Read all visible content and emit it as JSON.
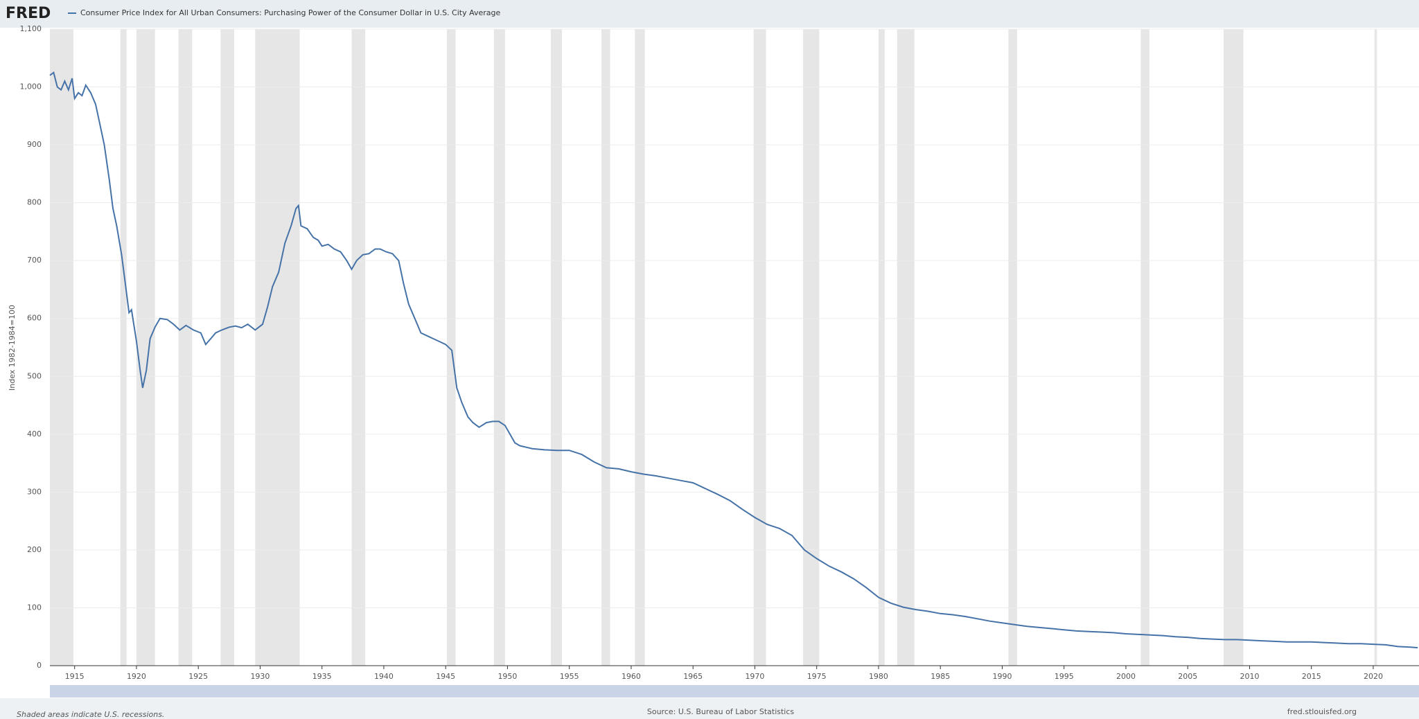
{
  "logo": "FRED",
  "chart_data": {
    "type": "line",
    "title": "Consumer Price Index for All Urban Consumers: Purchasing Power of the Consumer Dollar in U.S. City Average",
    "y_label": "Index 1982-1984=100",
    "note": "Shaded areas indicate U.S. recessions.",
    "source": "Source: U.S. Bureau of Labor Statistics",
    "site": "fred.stlouisfed.org",
    "xlim": [
      1913,
      2023.7
    ],
    "xticks": [
      1915,
      1920,
      1925,
      1930,
      1935,
      1940,
      1945,
      1950,
      1955,
      1960,
      1965,
      1970,
      1975,
      1980,
      1985,
      1990,
      1995,
      2000,
      2005,
      2010,
      2015,
      2020
    ],
    "ylim": [
      0,
      1100
    ],
    "yticks": [
      0,
      100,
      200,
      300,
      400,
      500,
      600,
      700,
      800,
      900,
      {
        "value": 1000,
        "label": "1,000"
      },
      {
        "value": 1100,
        "label": "1,100"
      }
    ],
    "grid": true,
    "recession_color": "#e6e6e6",
    "recessions": [
      [
        1913.0,
        1914.9
      ],
      [
        1918.7,
        1919.2
      ],
      [
        1920.0,
        1921.5
      ],
      [
        1923.4,
        1924.5
      ],
      [
        1926.8,
        1927.9
      ],
      [
        1929.6,
        1933.2
      ],
      [
        1937.4,
        1938.5
      ],
      [
        1945.1,
        1945.8
      ],
      [
        1948.9,
        1949.8
      ],
      [
        1953.5,
        1954.4
      ],
      [
        1957.6,
        1958.3
      ],
      [
        1960.3,
        1961.1
      ],
      [
        1969.9,
        1970.9
      ],
      [
        1973.9,
        1975.2
      ],
      [
        1980.0,
        1980.5
      ],
      [
        1981.5,
        1982.9
      ],
      [
        1990.5,
        1991.2
      ],
      [
        2001.2,
        2001.9
      ],
      [
        2007.9,
        2009.5
      ],
      [
        2020.1,
        2020.3
      ]
    ],
    "x": [
      1913.0,
      1913.3,
      1913.6,
      1913.9,
      1914.2,
      1914.5,
      1914.8,
      1915.0,
      1915.3,
      1915.6,
      1915.9,
      1916.3,
      1916.7,
      1917.0,
      1917.4,
      1917.8,
      1918.1,
      1918.4,
      1918.8,
      1919.1,
      1919.4,
      1919.6,
      1920.0,
      1920.3,
      1920.5,
      1920.8,
      1921.1,
      1921.5,
      1921.9,
      1922.5,
      1923.0,
      1923.5,
      1924.0,
      1924.6,
      1925.2,
      1925.6,
      1926.0,
      1926.4,
      1926.9,
      1927.5,
      1928.0,
      1928.5,
      1929.0,
      1929.6,
      1930.2,
      1930.6,
      1931.0,
      1931.5,
      1932.0,
      1932.5,
      1932.9,
      1933.1,
      1933.3,
      1933.8,
      1934.3,
      1934.7,
      1935.0,
      1935.5,
      1936.0,
      1936.5,
      1937.0,
      1937.4,
      1937.8,
      1938.3,
      1938.8,
      1939.3,
      1939.7,
      1940.2,
      1940.7,
      1941.2,
      1941.6,
      1942.0,
      1942.5,
      1943.0,
      1943.5,
      1944.0,
      1944.5,
      1945.0,
      1945.5,
      1945.9,
      1946.3,
      1946.8,
      1947.2,
      1947.7,
      1948.3,
      1948.8,
      1949.3,
      1949.8,
      1950.2,
      1950.6,
      1951,
      1952,
      1953,
      1954,
      1955,
      1956,
      1957,
      1958,
      1959,
      1960,
      1961,
      1962,
      1963,
      1964,
      1965,
      1966,
      1967,
      1968,
      1969,
      1970,
      1971,
      1972,
      1973,
      1974,
      1975,
      1976,
      1977,
      1978,
      1979,
      1980,
      1981,
      1982,
      1983,
      1984,
      1985,
      1986,
      1987,
      1988,
      1989,
      1990,
      1991,
      1992,
      1993,
      1994,
      1995,
      1996,
      1997,
      1998,
      1999,
      2000,
      2001,
      2002,
      2003,
      2004,
      2005,
      2006,
      2007,
      2008,
      2009,
      2010,
      2011,
      2012,
      2013,
      2014,
      2015,
      2016,
      2017,
      2018,
      2019,
      2020,
      2021,
      2022,
      2023,
      2023.6
    ],
    "series": [
      {
        "name": "Consumer Price Index for All Urban Consumers: Purchasing Power of the Consumer Dollar in U.S. City Average",
        "color": "#4572a7",
        "values": [
          1020,
          1025,
          1000,
          995,
          1010,
          995,
          1015,
          980,
          990,
          985,
          1003,
          990,
          970,
          940,
          900,
          840,
          790,
          760,
          710,
          660,
          610,
          615,
          560,
          510,
          480,
          510,
          565,
          585,
          600,
          598,
          590,
          580,
          588,
          580,
          575,
          555,
          565,
          575,
          580,
          585,
          587,
          584,
          590,
          580,
          590,
          620,
          655,
          680,
          730,
          760,
          790,
          795,
          760,
          755,
          740,
          735,
          725,
          728,
          720,
          715,
          700,
          685,
          700,
          710,
          712,
          720,
          720,
          715,
          712,
          700,
          660,
          625,
          600,
          575,
          570,
          565,
          560,
          555,
          545,
          480,
          455,
          430,
          420,
          412,
          420,
          422,
          422,
          415,
          400,
          385,
          380,
          375,
          373,
          372,
          372,
          365,
          352,
          342,
          340,
          335,
          331,
          328,
          324,
          320,
          316,
          306,
          296,
          285,
          270,
          256,
          244,
          237,
          225,
          200,
          185,
          172,
          162,
          150,
          135,
          118,
          108,
          101,
          97,
          94,
          90,
          88,
          85,
          81,
          77,
          74,
          71,
          68,
          66,
          64,
          62,
          60,
          59,
          58,
          57,
          55,
          54,
          53,
          52,
          50,
          49,
          47,
          46,
          45,
          45,
          44,
          43,
          42,
          41,
          41,
          41,
          40,
          39,
          38,
          38,
          37,
          36,
          33,
          32,
          31
        ]
      }
    ]
  }
}
